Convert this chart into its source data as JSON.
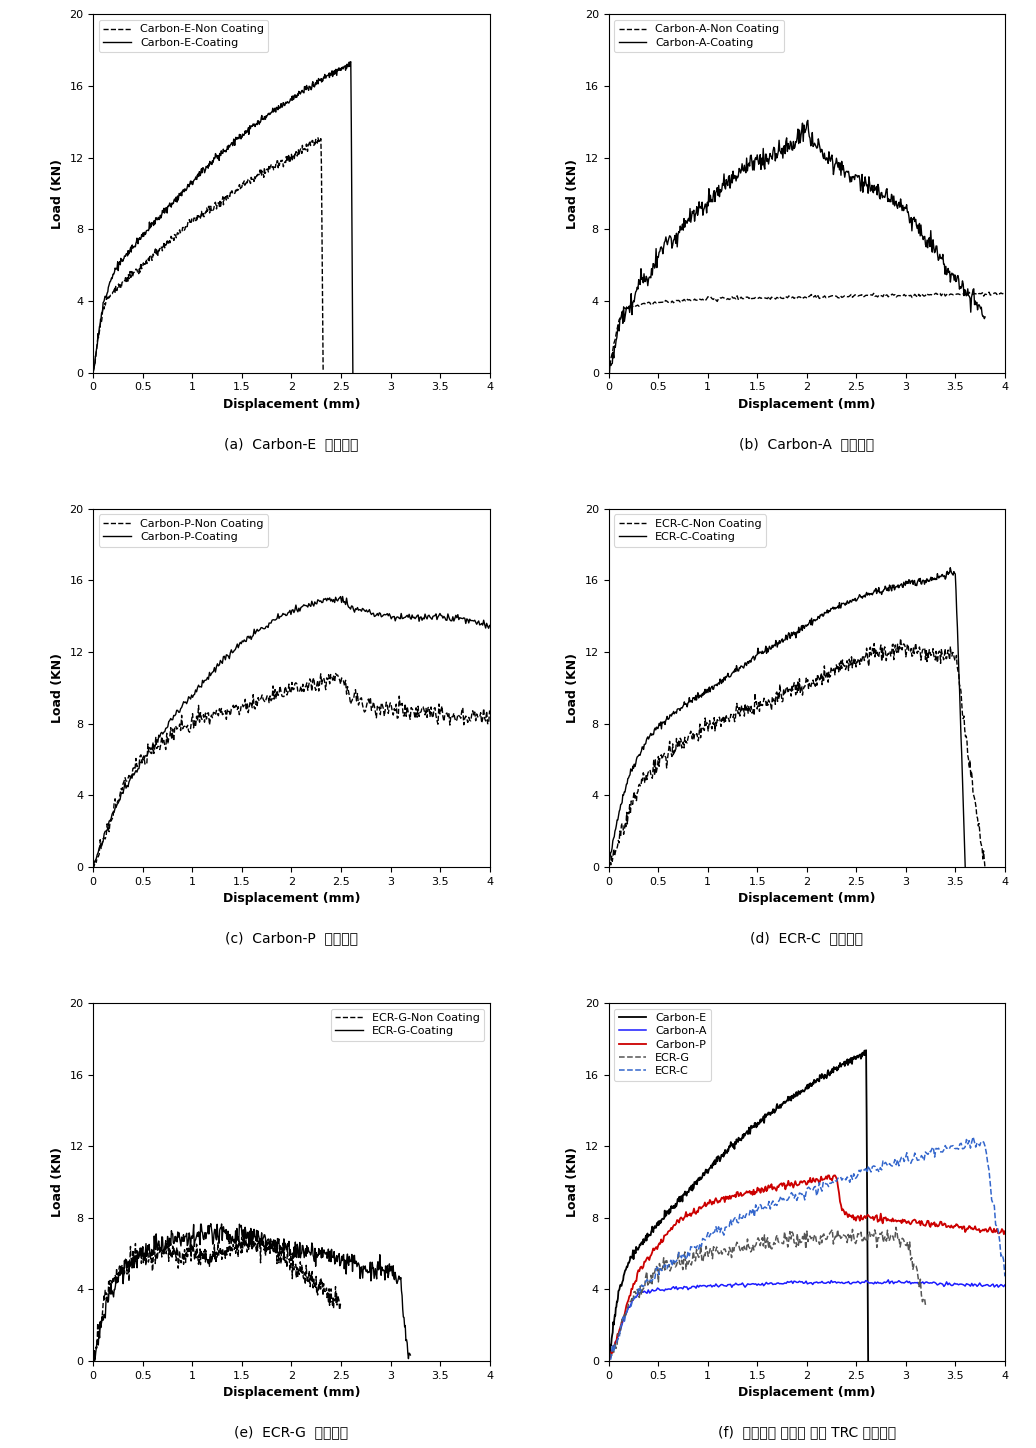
{
  "figure_size": [
    10.36,
    14.48
  ],
  "dpi": 100,
  "xlim": [
    0,
    4
  ],
  "ylim": [
    0,
    20
  ],
  "yticks": [
    0,
    4,
    8,
    12,
    16,
    20
  ],
  "xticks": [
    0,
    0.5,
    1,
    1.5,
    2,
    2.5,
    3,
    3.5,
    4
  ],
  "xlabel": "Displacement (mm)",
  "ylabel": "Load (KN)",
  "captions": [
    "(a)  Carbon-E  코팅유무",
    "(b)  Carbon-A  코팅유무",
    "(c)  Carbon-P  코팅유무",
    "(d)  ECR-C  코팅유무",
    "(e)  ECR-G  코팅유무",
    "(f)  텍스타일 종류에 따른 TRC 거동특성"
  ],
  "legend_a": [
    "Carbon-E-Non Coating",
    "Carbon-E-Coating"
  ],
  "legend_b": [
    "Carbon-A-Non Coating",
    "Carbon-A-Coating"
  ],
  "legend_c": [
    "Carbon-P-Non Coating",
    "Carbon-P-Coating"
  ],
  "legend_d": [
    "ECR-C-Non Coating",
    "ECR-C-Coating"
  ],
  "legend_e": [
    "ECR-G-Non Coating",
    "ECR-G-Coating"
  ],
  "legend_f": [
    "Carbon-E",
    "Carbon-A",
    "Carbon-P",
    "ECR-G",
    "ECR-C"
  ]
}
